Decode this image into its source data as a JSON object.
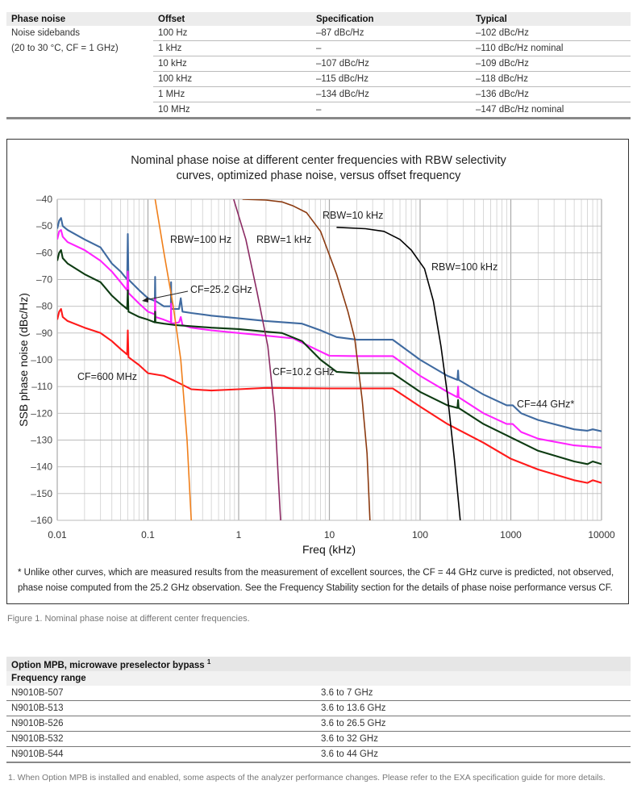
{
  "phase_table": {
    "headers": [
      "Phase noise",
      "Offset",
      "Specification",
      "Typical"
    ],
    "label_line1": "Noise sidebands",
    "label_line2": "(20 to 30 °C, CF = 1 GHz)",
    "rows": [
      {
        "offset": "100 Hz",
        "spec": "–87 dBc/Hz",
        "typical": "–102 dBc/Hz"
      },
      {
        "offset": "1 kHz",
        "spec": "–",
        "typical": "–110 dBc/Hz nominal"
      },
      {
        "offset": "10 kHz",
        "spec": "–107 dBc/Hz",
        "typical": "–109 dBc/Hz"
      },
      {
        "offset": "100 kHz",
        "spec": "–115 dBc/Hz",
        "typical": "–118 dBc/Hz"
      },
      {
        "offset": "1 MHz",
        "spec": "–134 dBc/Hz",
        "typical": "–136 dBc/Hz"
      },
      {
        "offset": "10 MHz",
        "spec": "–",
        "typical": "–147 dBc/Hz nominal"
      }
    ]
  },
  "chart_data": {
    "type": "line",
    "title_line1": "Nominal phase noise at different center frequencies with RBW selectivity",
    "title_line2": "curves, optimized phase noise, versus offset frequency",
    "xlabel": "Freq (kHz)",
    "ylabel": "SSB phase noise (dBc/Hz)",
    "xscale": "log",
    "xlim": [
      0.01,
      10000
    ],
    "ylim": [
      -160,
      -40
    ],
    "xticks": [
      "0.01",
      "0.1",
      "1",
      "10",
      "100",
      "1000",
      "10000"
    ],
    "yticks": [
      "–40",
      "–50",
      "–60",
      "–70",
      "–80",
      "–90",
      "–100",
      "–110",
      "–120",
      "–130",
      "–140",
      "–150",
      "–160"
    ],
    "grid": true,
    "series": [
      {
        "name": "CF=44 GHz*",
        "color": "#3f6aa0",
        "points": [
          [
            0.01,
            -51
          ],
          [
            0.0105,
            -48
          ],
          [
            0.011,
            -47
          ],
          [
            0.0115,
            -50
          ],
          [
            0.013,
            -51.5
          ],
          [
            0.02,
            -55
          ],
          [
            0.03,
            -58
          ],
          [
            0.04,
            -64
          ],
          [
            0.05,
            -67
          ],
          [
            0.059,
            -70
          ],
          [
            0.06,
            -53
          ],
          [
            0.061,
            -70
          ],
          [
            0.08,
            -74
          ],
          [
            0.1,
            -77
          ],
          [
            0.119,
            -78
          ],
          [
            0.12,
            -69
          ],
          [
            0.121,
            -78
          ],
          [
            0.15,
            -80
          ],
          [
            0.179,
            -80
          ],
          [
            0.18,
            -71
          ],
          [
            0.181,
            -81
          ],
          [
            0.22,
            -81
          ],
          [
            0.23,
            -77
          ],
          [
            0.24,
            -82
          ],
          [
            0.3,
            -82.5
          ],
          [
            0.5,
            -83.5
          ],
          [
            1,
            -84.5
          ],
          [
            2,
            -85.5
          ],
          [
            5,
            -86.5
          ],
          [
            8,
            -89
          ],
          [
            12,
            -91.5
          ],
          [
            20,
            -92.5
          ],
          [
            50,
            -92.5
          ],
          [
            100,
            -100
          ],
          [
            200,
            -106
          ],
          [
            258,
            -107.5
          ],
          [
            262,
            -104
          ],
          [
            266,
            -107.5
          ],
          [
            500,
            -113
          ],
          [
            900,
            -117
          ],
          [
            1050,
            -117
          ],
          [
            1300,
            -120
          ],
          [
            2000,
            -122.5
          ],
          [
            5000,
            -126
          ],
          [
            7000,
            -126.5
          ],
          [
            8000,
            -126
          ],
          [
            10000,
            -126.7
          ]
        ]
      },
      {
        "name": "CF=25.2 GHz",
        "color": "#ff22ff",
        "points": [
          [
            0.01,
            -55
          ],
          [
            0.0105,
            -52
          ],
          [
            0.011,
            -51.5
          ],
          [
            0.0115,
            -54
          ],
          [
            0.013,
            -56
          ],
          [
            0.02,
            -59
          ],
          [
            0.03,
            -63
          ],
          [
            0.04,
            -67
          ],
          [
            0.05,
            -71
          ],
          [
            0.059,
            -74
          ],
          [
            0.06,
            -67
          ],
          [
            0.061,
            -75
          ],
          [
            0.08,
            -79
          ],
          [
            0.1,
            -82
          ],
          [
            0.119,
            -83
          ],
          [
            0.12,
            -77
          ],
          [
            0.121,
            -84
          ],
          [
            0.15,
            -85
          ],
          [
            0.179,
            -86
          ],
          [
            0.18,
            -79
          ],
          [
            0.181,
            -86.5
          ],
          [
            0.22,
            -86
          ],
          [
            0.23,
            -84
          ],
          [
            0.24,
            -87
          ],
          [
            0.3,
            -88
          ],
          [
            0.5,
            -89
          ],
          [
            1,
            -90
          ],
          [
            2,
            -91
          ],
          [
            4,
            -92
          ],
          [
            7,
            -96
          ],
          [
            10,
            -98.5
          ],
          [
            20,
            -98.6
          ],
          [
            50,
            -98.6
          ],
          [
            100,
            -106
          ],
          [
            200,
            -112
          ],
          [
            258,
            -114
          ],
          [
            262,
            -110
          ],
          [
            266,
            -114
          ],
          [
            500,
            -120
          ],
          [
            900,
            -124
          ],
          [
            1050,
            -124
          ],
          [
            1300,
            -127
          ],
          [
            2000,
            -129.5
          ],
          [
            5000,
            -132
          ],
          [
            10000,
            -132.8
          ]
        ]
      },
      {
        "name": "CF=10.2 GHz",
        "color": "#0d3b12",
        "points": [
          [
            0.01,
            -63
          ],
          [
            0.0105,
            -60
          ],
          [
            0.011,
            -59
          ],
          [
            0.0115,
            -62
          ],
          [
            0.013,
            -64
          ],
          [
            0.02,
            -68
          ],
          [
            0.03,
            -71
          ],
          [
            0.04,
            -76
          ],
          [
            0.05,
            -79
          ],
          [
            0.059,
            -81
          ],
          [
            0.06,
            -74
          ],
          [
            0.061,
            -82
          ],
          [
            0.08,
            -84
          ],
          [
            0.1,
            -85
          ],
          [
            0.119,
            -86
          ],
          [
            0.12,
            -82
          ],
          [
            0.121,
            -86
          ],
          [
            0.15,
            -86.5
          ],
          [
            0.2,
            -87
          ],
          [
            0.5,
            -88
          ],
          [
            1,
            -88.5
          ],
          [
            2,
            -89.5
          ],
          [
            3,
            -90
          ],
          [
            5,
            -93
          ],
          [
            8,
            -100
          ],
          [
            12,
            -104.5
          ],
          [
            20,
            -105
          ],
          [
            50,
            -105
          ],
          [
            100,
            -112
          ],
          [
            200,
            -117
          ],
          [
            258,
            -118
          ],
          [
            262,
            -115
          ],
          [
            266,
            -118
          ],
          [
            500,
            -124
          ],
          [
            1000,
            -129
          ],
          [
            2000,
            -134
          ],
          [
            5000,
            -138
          ],
          [
            7000,
            -139
          ],
          [
            8000,
            -138
          ],
          [
            10000,
            -139
          ]
        ]
      },
      {
        "name": "CF=600 MHz",
        "color": "#ff1a1a",
        "points": [
          [
            0.01,
            -85
          ],
          [
            0.0105,
            -82
          ],
          [
            0.011,
            -81
          ],
          [
            0.0115,
            -84
          ],
          [
            0.013,
            -85.5
          ],
          [
            0.02,
            -88
          ],
          [
            0.03,
            -90
          ],
          [
            0.04,
            -93
          ],
          [
            0.05,
            -96
          ],
          [
            0.059,
            -98
          ],
          [
            0.06,
            -89
          ],
          [
            0.061,
            -99
          ],
          [
            0.08,
            -102
          ],
          [
            0.1,
            -105
          ],
          [
            0.15,
            -106
          ],
          [
            0.2,
            -108
          ],
          [
            0.3,
            -111
          ],
          [
            0.5,
            -111.5
          ],
          [
            1,
            -111
          ],
          [
            2,
            -110.5
          ],
          [
            10,
            -110.7
          ],
          [
            50,
            -110.7
          ],
          [
            100,
            -117.5
          ],
          [
            200,
            -124
          ],
          [
            500,
            -131
          ],
          [
            1000,
            -137
          ],
          [
            2000,
            -141
          ],
          [
            5000,
            -145
          ],
          [
            7000,
            -146
          ],
          [
            8000,
            -145
          ],
          [
            10000,
            -146
          ]
        ]
      },
      {
        "name": "RBW=100 Hz",
        "color": "#f07f1a",
        "points": [
          [
            0.12,
            -40
          ],
          [
            0.15,
            -60
          ],
          [
            0.19,
            -80
          ],
          [
            0.23,
            -100
          ],
          [
            0.27,
            -130
          ],
          [
            0.3,
            -160
          ]
        ]
      },
      {
        "name": "RBW=1 kHz",
        "color": "#8b2a63",
        "points": [
          [
            0.88,
            -40
          ],
          [
            1.2,
            -55
          ],
          [
            1.6,
            -75
          ],
          [
            2.1,
            -95
          ],
          [
            2.5,
            -120
          ],
          [
            2.9,
            -160
          ]
        ]
      },
      {
        "name": "RBW=10 kHz",
        "color": "#8b3a10",
        "points": [
          [
            1.1,
            -40
          ],
          [
            2,
            -40.3
          ],
          [
            3,
            -41
          ],
          [
            4,
            -42.5
          ],
          [
            5.6,
            -45
          ],
          [
            8,
            -52
          ],
          [
            12,
            -68
          ],
          [
            16,
            -82
          ],
          [
            19,
            -92
          ],
          [
            23,
            -115
          ],
          [
            26,
            -135
          ],
          [
            28,
            -160
          ]
        ]
      },
      {
        "name": "RBW=100 kHz",
        "color": "#000000",
        "points": [
          [
            12,
            -50.5
          ],
          [
            25,
            -51
          ],
          [
            40,
            -52
          ],
          [
            60,
            -55
          ],
          [
            80,
            -59
          ],
          [
            112,
            -66
          ],
          [
            140,
            -78
          ],
          [
            170,
            -95
          ],
          [
            200,
            -113
          ],
          [
            240,
            -138
          ],
          [
            277,
            -160
          ]
        ]
      }
    ],
    "annotations": [
      "RBW=100 Hz",
      "RBW=1 kHz",
      "RBW=10 kHz",
      "RBW=100 kHz",
      "CF=25.2 GHz",
      "CF=600 MHz",
      "CF=10.2 GHz",
      "CF=44 GHz*"
    ],
    "footnote_line1": "* Unlike other curves, which are measured results from the measurement of excellent sources, the CF = 44 GHz curve is predicted, not observed,",
    "footnote_line2": "phase noise computed from the 25.2 GHz observation. See the Frequency Stability section for the details of phase noise performance versus CF."
  },
  "figure_caption": "Figure 1. Nominal phase noise at different center frequencies.",
  "mpb_table": {
    "title": "Option MPB, microwave preselector bypass",
    "title_sup": "1",
    "subheader": "Frequency range",
    "rows": [
      {
        "model": "N9010B-507",
        "range": "3.6 to 7 GHz"
      },
      {
        "model": "N9010B-513",
        "range": "3.6 to 13.6 GHz"
      },
      {
        "model": "N9010B-526",
        "range": "3.6 to 26.5 GHz"
      },
      {
        "model": "N9010B-532",
        "range": "3.6 to 32 GHz"
      },
      {
        "model": "N9010B-544",
        "range": "3.6 to 44 GHz"
      }
    ],
    "footnote": "1.   When Option MPB is installed and enabled, some aspects of the analyzer performance changes. Please refer to the EXA specification guide for more details."
  }
}
